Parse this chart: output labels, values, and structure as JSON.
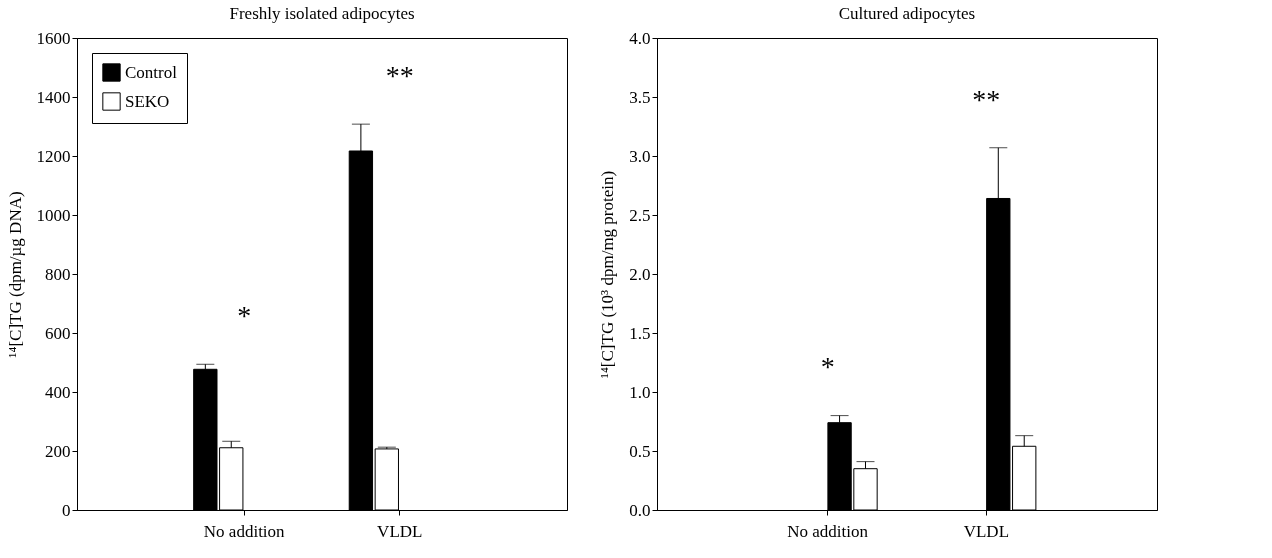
{
  "chart_data": [
    {
      "type": "bar",
      "title": "Freshly isolated adipocytes",
      "ylabel": "¹⁴[C]TG (dpm/µg DNA)",
      "categories": [
        "No addition",
        "VLDL"
      ],
      "series": [
        {
          "name": "Control",
          "color": "#000000",
          "values": [
            477,
            1217
          ],
          "errors": [
            [
              477,
              494
            ],
            [
              1217,
              1308
            ]
          ]
        },
        {
          "name": "SEKO",
          "color": "#ffffff",
          "values": [
            211,
            207
          ],
          "errors": [
            [
              211,
              233
            ],
            [
              207,
              213
            ]
          ]
        }
      ],
      "ylim": [
        0,
        1600
      ],
      "yticks": [
        0,
        200,
        400,
        600,
        800,
        1000,
        1200,
        1400,
        1600
      ],
      "grid": false,
      "legend": "top left",
      "annotations": [
        "*",
        "**"
      ]
    },
    {
      "type": "bar",
      "title": "Cultured adipocytes",
      "ylabel": "¹⁴[C]TG (10³ dpm/mg protein)",
      "categories": [
        "No addition",
        "VLDL"
      ],
      "series": [
        {
          "color": "#000000",
          "values": [
            0.74,
            2.64
          ],
          "errors": [
            [
              0.74,
              0.8
            ],
            [
              2.64,
              3.07
            ]
          ]
        },
        {
          "color": "#ffffff",
          "values": [
            0.35,
            0.54
          ],
          "errors": [
            [
              0.35,
              0.41
            ],
            [
              0.54,
              0.63
            ]
          ]
        }
      ],
      "ylim": [
        0,
        4.0
      ],
      "yticks": [
        {
          "value": 0,
          "label": "0.0"
        },
        0.5,
        {
          "value": 1,
          "label": "1.0"
        },
        1.5,
        {
          "value": 2,
          "label": "2.0"
        },
        2.5,
        {
          "value": 3,
          "label": "3.0"
        },
        3.5,
        {
          "value": 4,
          "label": "4.0"
        }
      ],
      "grid": false,
      "legend": false,
      "annotations": [
        "*",
        "**"
      ]
    }
  ]
}
